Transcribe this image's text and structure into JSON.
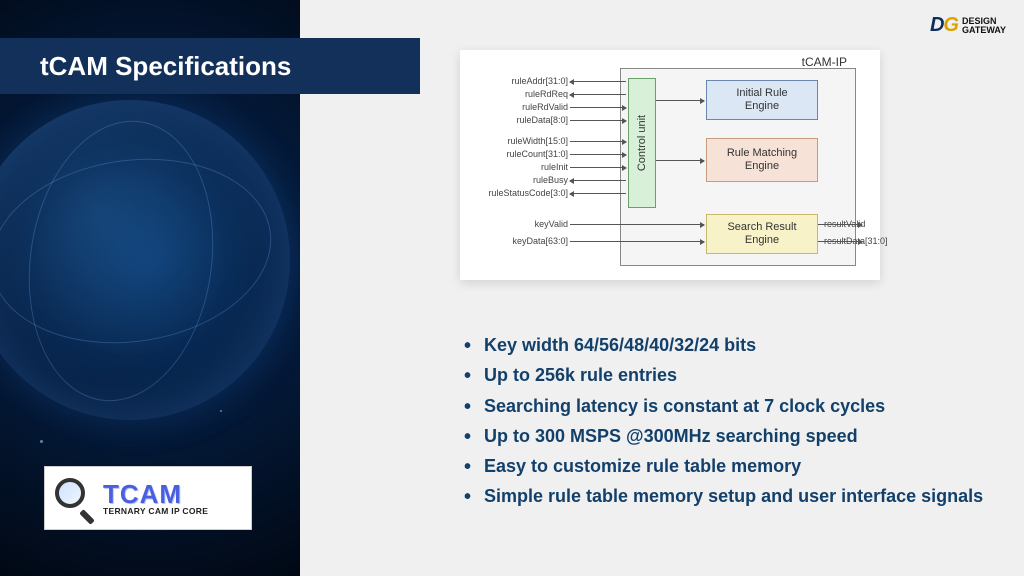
{
  "title": "tCAM Specifications",
  "brand": {
    "mark_d": "D",
    "mark_g": "G",
    "line1": "DESIGN",
    "line2": "GATEWAY"
  },
  "product_badge": {
    "name": "TCAM",
    "tagline": "TERNARY CAM IP CORE"
  },
  "diagram": {
    "frame_label": "tCAM-IP",
    "control_unit": "Control unit",
    "engines": {
      "initial": "Initial Rule\nEngine",
      "matching": "Rule Matching\nEngine",
      "result": "Search Result\nEngine"
    },
    "signals_left": [
      "ruleAddr[31:0]",
      "ruleRdReq",
      "ruleRdValid",
      "ruleData[8:0]",
      "ruleWidth[15:0]",
      "ruleCount[31:0]",
      "ruleInit",
      "ruleBusy",
      "ruleStatusCode[3:0]",
      "keyValid",
      "keyData[63:0]"
    ],
    "signals_right": [
      "resultValid",
      "resultData[31:0]"
    ]
  },
  "specs": [
    "Key width 64/56/48/40/32/24 bits",
    "Up to 256k rule entries",
    "Searching latency is constant at 7 clock cycles",
    "Up to 300 MSPS @300MHz searching speed",
    "Easy to customize rule table memory",
    "Simple rule table memory setup and user interface signals"
  ],
  "colors": {
    "title_bg": "#12305a",
    "spec_text": "#13406b",
    "engine_initial": "#dbe7f5",
    "engine_matching": "#f6e2d6",
    "engine_result": "#f8f2c8",
    "control": "#d8f0d8"
  }
}
